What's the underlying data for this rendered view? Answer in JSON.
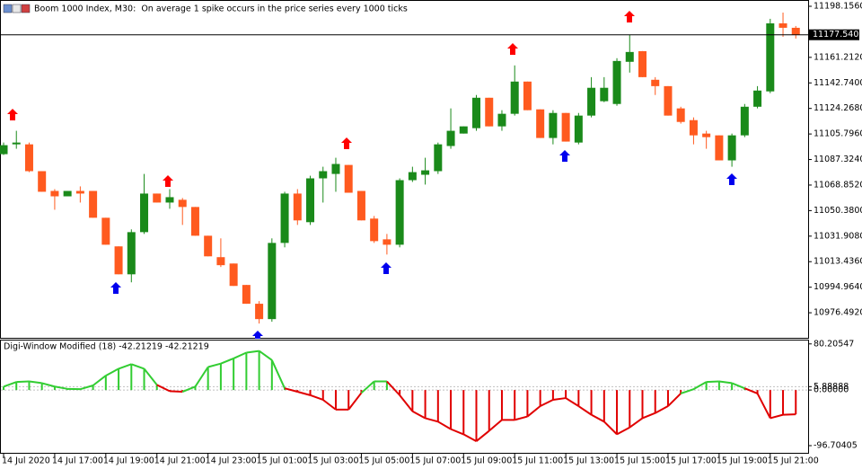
{
  "chart_data": [
    {
      "type": "candlestick",
      "title": "Boom 1000 Index, M30:  On average 1 spike occurs in the price series every 1000 ticks",
      "categories": [
        "14 Jul 2020",
        null,
        null,
        null,
        "14 Jul 17:00",
        null,
        null,
        null,
        "14 Jul 19:00",
        null,
        null,
        null,
        "14 Jul 21:00",
        null,
        null,
        null,
        "14 Jul 23:00",
        null,
        null,
        null,
        "15 Jul 01:00",
        null,
        null,
        null,
        "15 Jul 03:00",
        null,
        null,
        null,
        "15 Jul 05:00",
        null,
        null,
        null,
        "15 Jul 07:00",
        null,
        null,
        null,
        "15 Jul 09:00",
        null,
        null,
        null,
        "15 Jul 11:00",
        null,
        null,
        null,
        "15 Jul 13:00",
        null,
        null,
        null,
        "15 Jul 15:00",
        null,
        null,
        null,
        "15 Jul 17:00",
        null,
        null,
        null,
        "15 Jul 19:00",
        null,
        null,
        null,
        "15 Jul 21:00",
        null,
        null
      ],
      "open": [
        11091.2,
        11098.3,
        11098.3,
        11078.9,
        11064.6,
        11060.7,
        11064.6,
        11064.6,
        11045.2,
        11024.5,
        11004.3,
        11034.8,
        11062.7,
        11056.2,
        11058.2,
        11053.0,
        11032.2,
        11016.7,
        11012.1,
        10996.6,
        10983.0,
        10971.9,
        11027.0,
        11062.7,
        11042.0,
        11073.7,
        11076.9,
        11083.4,
        11064.6,
        11044.6,
        11029.6,
        11025.7,
        11072.4,
        11076.3,
        11078.9,
        11097.1,
        11106.1,
        11110.0,
        11132.0,
        11111.3,
        11120.4,
        11143.7,
        11123.6,
        11102.9,
        11121.0,
        11099.6,
        11119.1,
        11129.5,
        11127.5,
        11158.0,
        11165.7,
        11145.0,
        11140.4,
        11124.3,
        11115.8,
        11106.1,
        11104.8,
        11086.7,
        11104.8,
        11125.5,
        11136.6,
        11185.8,
        11182.6
      ],
      "high": [
        11099.6,
        11108.1,
        11099.6,
        11078.9,
        11065.9,
        11064.6,
        11067.9,
        11064.6,
        11045.2,
        11024.5,
        11036.8,
        11076.9,
        11062.7,
        11065.9,
        11059.5,
        11053.0,
        11032.2,
        11030.3,
        11012.1,
        10996.6,
        10984.9,
        11030.3,
        11064.0,
        11065.9,
        11075.6,
        11082.1,
        11088.6,
        11083.4,
        11064.6,
        11046.5,
        11033.5,
        11073.7,
        11082.1,
        11088.6,
        11099.6,
        11124.3,
        11111.3,
        11134.0,
        11132.0,
        11123.0,
        11155.4,
        11143.7,
        11123.6,
        11123.0,
        11121.0,
        11121.0,
        11146.9,
        11146.9,
        11160.6,
        11177.4,
        11165.7,
        11146.9,
        11140.4,
        11125.5,
        11117.8,
        11108.1,
        11104.8,
        11106.1,
        11127.5,
        11140.4,
        11189.1,
        11193.6,
        11183.9
      ],
      "low": [
        11090.6,
        11095.1,
        11078.2,
        11064.0,
        11051.0,
        11060.7,
        11056.2,
        11045.2,
        11025.7,
        11004.3,
        10998.5,
        11033.5,
        11056.2,
        11051.7,
        11040.0,
        11032.2,
        11017.3,
        11009.6,
        10995.9,
        10983.0,
        10968.7,
        10970.0,
        11023.8,
        11040.0,
        11040.0,
        11056.2,
        11064.0,
        11063.3,
        11043.3,
        11027.0,
        11018.6,
        11023.8,
        11071.1,
        11069.2,
        11076.9,
        11095.1,
        11106.1,
        11108.1,
        11111.3,
        11108.1,
        11119.1,
        11123.0,
        11102.9,
        11098.3,
        11100.3,
        11098.3,
        11117.8,
        11128.8,
        11126.2,
        11150.2,
        11146.9,
        11134.0,
        11119.1,
        11113.3,
        11098.3,
        11095.1,
        11086.7,
        11082.1,
        11103.5,
        11124.3,
        11135.3,
        11176.1,
        11174.8
      ],
      "close": [
        11097.7,
        11099.6,
        11078.9,
        11064.0,
        11060.7,
        11064.6,
        11062.7,
        11045.2,
        11025.7,
        11004.3,
        11034.8,
        11062.7,
        11056.2,
        11060.1,
        11053.0,
        11032.2,
        11017.3,
        11010.9,
        10995.9,
        10983.0,
        10971.9,
        11027.0,
        11062.7,
        11043.3,
        11073.7,
        11078.9,
        11084.1,
        11063.3,
        11043.3,
        11028.3,
        11025.7,
        11072.4,
        11078.2,
        11079.5,
        11098.3,
        11108.1,
        11111.3,
        11132.0,
        11111.3,
        11120.4,
        11143.7,
        11123.0,
        11102.9,
        11121.0,
        11100.3,
        11119.1,
        11139.2,
        11139.2,
        11158.6,
        11165.1,
        11146.9,
        11140.4,
        11119.1,
        11114.5,
        11104.8,
        11103.5,
        11086.7,
        11104.8,
        11125.5,
        11137.2,
        11185.8,
        11182.6,
        11177.54
      ],
      "up_color": "#1a8a1a",
      "down_color": "#ff5a1f",
      "price_line": {
        "value": 11177.54,
        "label": "11177.5400"
      },
      "ylim": [
        10958.36,
        11201.4
      ],
      "yticks": [
        {
          "value": 11198.156,
          "label": "11198.1560"
        },
        {
          "value": 11161.212,
          "label": "11161.2120"
        },
        {
          "value": 11142.74,
          "label": "11142.7400"
        },
        {
          "value": 11124.268,
          "label": "11124.2680"
        },
        {
          "value": 11105.796,
          "label": "11105.7960"
        },
        {
          "value": 11087.324,
          "label": "11087.3240"
        },
        {
          "value": 11068.852,
          "label": "11068.8520"
        },
        {
          "value": 11050.38,
          "label": "11050.3800"
        },
        {
          "value": 11031.908,
          "label": "11031.9080"
        },
        {
          "value": 11013.436,
          "label": "11013.4360"
        },
        {
          "value": 10994.964,
          "label": "10994.9640"
        },
        {
          "value": 10976.492,
          "label": "10976.4920"
        }
      ]
    },
    {
      "type": "histogram-line",
      "title": "Digi-Window Modified (18) -42.21219 -42.21219",
      "values": [
        6,
        14,
        15,
        12,
        6,
        2,
        1.5,
        8,
        25,
        37,
        45,
        37,
        9,
        -2,
        -3,
        6,
        40,
        46,
        55,
        65,
        68,
        52,
        3,
        -3,
        -9,
        -17,
        -34,
        -34,
        -5,
        15,
        15,
        -9,
        -37,
        -49,
        -55,
        -68,
        -77,
        -89,
        -71,
        -52,
        -52,
        -46,
        -28,
        -17,
        -14,
        -28,
        -43,
        -55,
        -77,
        -65,
        -49,
        -40,
        -28,
        -6,
        1.5,
        14,
        15,
        12,
        3,
        -6,
        -49,
        -43,
        -42.21219
      ],
      "positive_color": "#32cd32",
      "negative_color": "#e00000",
      "ylim": [
        -109.2,
        86.1
      ],
      "yticks": [
        80.20547,
        5.88888,
        {
          "value": 0,
          "label": "0.00000"
        },
        -96.70405
      ]
    }
  ]
}
